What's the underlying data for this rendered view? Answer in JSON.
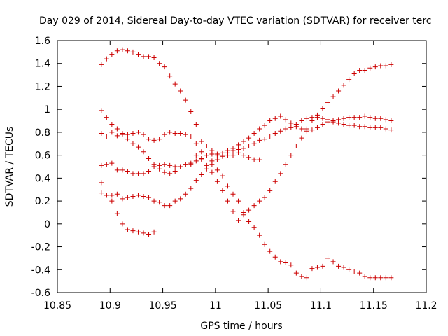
{
  "chart_data": {
    "type": "scatter",
    "title": "Day 029 of 2014, Sidereal Day-to-day VTEC variation (SDTVAR) for receiver terc",
    "xlabel": "GPS time / hours",
    "ylabel": "SDTVAR / TECUs",
    "xlim": [
      10.85,
      11.2
    ],
    "ylim": [
      -0.6,
      1.6
    ],
    "xticks": [
      10.85,
      10.9,
      10.95,
      11,
      11.05,
      11.1,
      11.15,
      11.2
    ],
    "xtick_labels": [
      "10.85",
      "10.9",
      "10.95",
      "11",
      "11.05",
      "11.1",
      "11.15",
      "11.2"
    ],
    "yticks": [
      -0.6,
      -0.4,
      -0.2,
      0,
      0.2,
      0.4,
      0.6,
      0.8,
      1,
      1.2,
      1.4,
      1.6
    ],
    "ytick_labels": [
      "-0.6",
      "-0.4",
      "-0.2",
      "0",
      "0.2",
      "0.4",
      "0.6",
      "0.8",
      "1",
      "1.2",
      "1.4",
      "1.6"
    ],
    "marker": "+",
    "color": "#cc0000",
    "series": [
      {
        "name": "series-1",
        "x": [
          10.8917,
          10.8967,
          10.9017,
          10.9067,
          10.9117,
          10.9167,
          10.9217,
          10.9267,
          10.9317,
          10.9367,
          10.9417,
          10.9467,
          10.9517,
          10.9567,
          10.9617,
          10.9667,
          10.9717,
          10.9767,
          10.9817,
          10.9867,
          10.9917,
          10.9967,
          11.0017,
          11.0067,
          11.0117,
          11.0167,
          11.0217,
          11.0267,
          11.0317,
          11.0367,
          11.0417
        ],
        "y": [
          1.39,
          1.44,
          1.48,
          1.51,
          1.52,
          1.51,
          1.5,
          1.48,
          1.46,
          1.46,
          1.45,
          1.4,
          1.37,
          1.29,
          1.22,
          1.16,
          1.08,
          0.98,
          0.87,
          0.72,
          0.68,
          0.64,
          0.6,
          0.6,
          0.6,
          0.6,
          0.62,
          0.6,
          0.58,
          0.56,
          0.56
        ]
      },
      {
        "name": "series-2",
        "x": [
          10.8917,
          10.8967,
          10.9017,
          10.9067,
          10.9117,
          10.9167,
          10.9217,
          10.9267,
          10.9317,
          10.9367,
          10.9417,
          10.9467,
          10.9517,
          10.9567,
          10.9617,
          10.9667,
          10.9717,
          10.9767,
          10.9817,
          10.9867,
          10.9917,
          10.9967,
          11.0017,
          11.0067,
          11.0117,
          11.0167,
          11.0217,
          11.0267,
          11.0317,
          11.0367,
          11.0417,
          11.0467,
          11.0517,
          11.0567,
          11.0617,
          11.0667,
          11.0717,
          11.0767,
          11.0817,
          11.0867,
          11.0917,
          11.0967,
          11.1017,
          11.1067,
          11.1117,
          11.1167,
          11.1217,
          11.1267,
          11.1317,
          11.1367,
          11.1417,
          11.1467,
          11.1517,
          11.1567,
          11.1617,
          11.1667
        ],
        "y": [
          0.99,
          0.93,
          0.87,
          0.83,
          0.79,
          0.74,
          0.7,
          0.67,
          0.63,
          0.57,
          0.52,
          0.48,
          0.45,
          0.44,
          0.46,
          0.5,
          0.52,
          0.53,
          0.6,
          0.56,
          0.51,
          0.45,
          0.37,
          0.29,
          0.2,
          0.11,
          0.03,
          0.08,
          0.12,
          0.16,
          0.2,
          0.23,
          0.29,
          0.37,
          0.44,
          0.52,
          0.6,
          0.68,
          0.75,
          0.83,
          0.9,
          0.95,
          1.01,
          1.06,
          1.11,
          1.16,
          1.21,
          1.26,
          1.31,
          1.34,
          1.34,
          1.36,
          1.37,
          1.38,
          1.38,
          1.39
        ]
      },
      {
        "name": "series-3",
        "x": [
          10.8917,
          10.8967,
          10.9017,
          10.9067,
          10.9117,
          10.9167,
          10.9217,
          10.9267,
          10.9317,
          10.9367,
          10.9417,
          10.9467,
          10.9517,
          10.9567,
          10.9617,
          10.9667,
          10.9717,
          10.9767,
          10.9817,
          10.9867,
          10.9917,
          10.9967,
          11.0017,
          11.0067,
          11.0117,
          11.0167,
          11.0217,
          11.0267,
          11.0317,
          11.0367,
          11.0417,
          11.0467,
          11.0517,
          11.0567,
          11.0617,
          11.0667,
          11.0717,
          11.0767,
          11.0817,
          11.0867,
          11.0917,
          11.0967,
          11.1017,
          11.1067,
          11.1117,
          11.1167,
          11.1217,
          11.1267,
          11.1317,
          11.1367,
          11.1417,
          11.1467,
          11.1517,
          11.1567,
          11.1617,
          11.1667
        ],
        "y": [
          0.79,
          0.76,
          0.8,
          0.77,
          0.78,
          0.78,
          0.79,
          0.8,
          0.78,
          0.74,
          0.73,
          0.74,
          0.78,
          0.8,
          0.79,
          0.79,
          0.78,
          0.76,
          0.7,
          0.63,
          0.6,
          0.55,
          0.47,
          0.42,
          0.33,
          0.26,
          0.2,
          0.1,
          0.02,
          -0.03,
          -0.1,
          -0.18,
          -0.24,
          -0.29,
          -0.33,
          -0.34,
          -0.36,
          -0.43,
          -0.46,
          -0.47,
          -0.39,
          -0.38,
          -0.37,
          -0.3,
          -0.33,
          -0.37,
          -0.38,
          -0.4,
          -0.42,
          -0.43,
          -0.46,
          -0.47,
          -0.47,
          -0.47,
          -0.47,
          -0.47
        ]
      },
      {
        "name": "series-4",
        "x": [
          10.8917,
          10.8967,
          10.9017,
          10.9067,
          10.9117,
          10.9167,
          10.9217,
          10.9267,
          10.9317,
          10.9367,
          10.9417,
          10.9467,
          10.9517,
          10.9567,
          10.9617,
          10.9667,
          10.9717,
          10.9767,
          10.9817,
          10.9867,
          10.9917,
          10.9967,
          11.0017,
          11.0067,
          11.0117,
          11.0167,
          11.0217,
          11.0267,
          11.0317,
          11.0367,
          11.0417,
          11.0467,
          11.0517,
          11.0567,
          11.0617,
          11.0667,
          11.0717,
          11.0767,
          11.0817,
          11.0867,
          11.0917,
          11.0967,
          11.1017,
          11.1067,
          11.1117,
          11.1167,
          11.1217,
          11.1267,
          11.1317,
          11.1367,
          11.1417,
          11.1467,
          11.1517,
          11.1567,
          11.1617,
          11.1667
        ],
        "y": [
          0.51,
          0.52,
          0.53,
          0.47,
          0.47,
          0.46,
          0.44,
          0.44,
          0.44,
          0.46,
          0.5,
          0.51,
          0.52,
          0.51,
          0.5,
          0.5,
          0.52,
          0.52,
          0.55,
          0.57,
          0.6,
          0.61,
          0.61,
          0.62,
          0.64,
          0.66,
          0.69,
          0.72,
          0.75,
          0.79,
          0.83,
          0.86,
          0.9,
          0.92,
          0.94,
          0.91,
          0.88,
          0.85,
          0.83,
          0.81,
          0.82,
          0.84,
          0.87,
          0.89,
          0.9,
          0.91,
          0.92,
          0.93,
          0.93,
          0.93,
          0.94,
          0.93,
          0.92,
          0.92,
          0.91,
          0.9
        ]
      },
      {
        "name": "series-5",
        "x": [
          10.8917,
          10.8967,
          10.9017,
          10.9067,
          10.9117,
          10.9167,
          10.9217,
          10.9267,
          10.9317,
          10.9367,
          10.9417,
          10.9467,
          10.9517,
          10.9567,
          10.9617,
          10.9667,
          10.9717,
          10.9767,
          10.9817,
          10.9867,
          10.9917,
          10.9967,
          11.0017,
          11.0067,
          11.0117,
          11.0167,
          11.0217,
          11.0267,
          11.0317,
          11.0367,
          11.0417,
          11.0467,
          11.0517,
          11.0567,
          11.0617,
          11.0667,
          11.0717,
          11.0767,
          11.0817,
          11.0867,
          11.0917,
          11.0967,
          11.1017,
          11.1067,
          11.1117,
          11.1167,
          11.1217,
          11.1267,
          11.1317,
          11.1367,
          11.1417,
          11.1467,
          11.1517,
          11.1567,
          11.1617,
          11.1667
        ],
        "y": [
          0.27,
          0.25,
          0.25,
          0.26,
          0.22,
          0.23,
          0.24,
          0.25,
          0.24,
          0.23,
          0.2,
          0.19,
          0.16,
          0.16,
          0.2,
          0.22,
          0.26,
          0.31,
          0.38,
          0.43,
          0.48,
          0.52,
          0.56,
          0.59,
          0.62,
          0.64,
          0.65,
          0.66,
          0.68,
          0.7,
          0.73,
          0.74,
          0.76,
          0.79,
          0.81,
          0.83,
          0.84,
          0.87,
          0.9,
          0.92,
          0.93,
          0.93,
          0.92,
          0.91,
          0.89,
          0.88,
          0.87,
          0.86,
          0.86,
          0.85,
          0.85,
          0.84,
          0.84,
          0.84,
          0.83,
          0.82
        ]
      },
      {
        "name": "series-6",
        "x": [
          10.8917,
          10.8967,
          10.9017,
          10.9067,
          10.9117,
          10.9167,
          10.9217,
          10.9267,
          10.9317,
          10.9367,
          10.9417
        ],
        "y": [
          0.36,
          0.25,
          0.2,
          0.09,
          0.0,
          -0.05,
          -0.06,
          -0.07,
          -0.08,
          -0.09,
          -0.07
        ]
      }
    ]
  }
}
